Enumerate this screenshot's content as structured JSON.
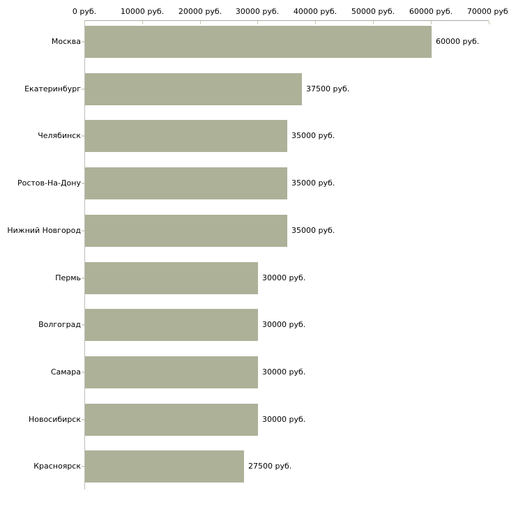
{
  "chart_data": {
    "type": "bar",
    "orientation": "horizontal",
    "title": "",
    "xlabel": "",
    "ylabel": "",
    "unit": "руб.",
    "xlim": [
      0,
      70000
    ],
    "grid": false,
    "legend": false,
    "categories": [
      "Москва",
      "Екатеринбург",
      "Челябинск",
      "Ростов-На-Дону",
      "Нижний Новгород",
      "Пермь",
      "Волгоград",
      "Самара",
      "Новосибирск",
      "Красноярск"
    ],
    "values": [
      60000,
      37500,
      35000,
      35000,
      35000,
      30000,
      30000,
      30000,
      30000,
      27500
    ],
    "value_labels": [
      "60000 руб.",
      "37500 руб.",
      "35000 руб.",
      "35000 руб.",
      "35000 руб.",
      "30000 руб.",
      "30000 руб.",
      "30000 руб.",
      "30000 руб.",
      "27500 руб."
    ],
    "x_ticks": [
      0,
      10000,
      20000,
      30000,
      40000,
      50000,
      60000,
      70000
    ],
    "x_tick_labels": [
      "0 руб.",
      "10000 руб.",
      "20000 руб.",
      "30000 руб.",
      "40000 руб.",
      "50000 руб.",
      "60000 руб.",
      "70000 руб."
    ],
    "colors": {
      "bar": "#acb198",
      "axis_line": "#aaaaa2",
      "axis_tick": "#c6c6b2",
      "category_tick": "#d6d6c6",
      "text": "#000000",
      "background": "#ffffff"
    }
  }
}
